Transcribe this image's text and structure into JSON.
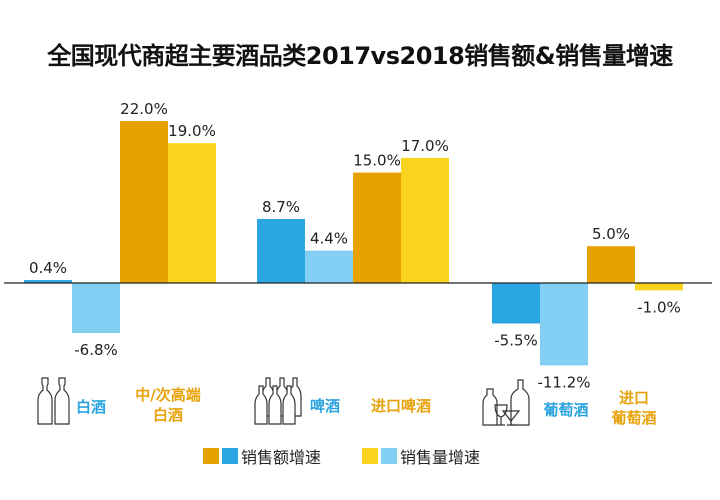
{
  "colors": {
    "sales_amount_main": "#2aa7e3",
    "sales_volume_main": "#84cff4",
    "sales_amount_premium": "#e8a200",
    "sales_volume_premium": "#fad31e",
    "axis": "#222222"
  },
  "chart_data": {
    "type": "bar",
    "title": "全国现代商超主要酒品类2017vs2018销售额&销售量增速",
    "xlabel": "",
    "ylabel": "",
    "ylim": [
      -12,
      24
    ],
    "grid": false,
    "legend_position": "bottom",
    "legend": [
      {
        "label": "销售额增速",
        "colors": [
          "#e8a200",
          "#2aa7e3"
        ]
      },
      {
        "label": "销售量增速",
        "colors": [
          "#fad31e",
          "#84cff4"
        ]
      }
    ],
    "groups": [
      {
        "category": "白酒",
        "label_color": "blue",
        "icon": "two-bottles-icon",
        "series": [
          {
            "name": "销售额增速",
            "value": 0.4,
            "label": "0.4%"
          },
          {
            "name": "销售量增速",
            "value": -6.8,
            "label": "-6.8%"
          }
        ]
      },
      {
        "category": "中/次高端\n白酒",
        "label_lines": [
          "中/次高端",
          "白酒"
        ],
        "label_color": "orange",
        "series": [
          {
            "name": "销售额增速",
            "value": 22.0,
            "label": "22.0%"
          },
          {
            "name": "销售量增速",
            "value": 19.0,
            "label": "19.0%"
          }
        ]
      },
      {
        "category": "啤酒",
        "label_color": "blue",
        "icon": "beer-bottles-icon",
        "series": [
          {
            "name": "销售额增速",
            "value": 8.7,
            "label": "8.7%"
          },
          {
            "name": "销售量增速",
            "value": 4.4,
            "label": "4.4%"
          }
        ]
      },
      {
        "category": "进口啤酒",
        "label_color": "orange",
        "series": [
          {
            "name": "销售额增速",
            "value": 15.0,
            "label": "15.0%"
          },
          {
            "name": "销售量增速",
            "value": 17.0,
            "label": "17.0%"
          }
        ]
      },
      {
        "category": "葡萄酒",
        "label_color": "blue",
        "icon": "wine-glass-bottles-icon",
        "series": [
          {
            "name": "销售额增速",
            "value": -5.5,
            "label": "-5.5%"
          },
          {
            "name": "销售量增速",
            "value": -11.2,
            "label": "-11.2%"
          }
        ]
      },
      {
        "category": "进口\n葡萄酒",
        "label_lines": [
          "进口",
          "葡萄酒"
        ],
        "label_color": "orange",
        "series": [
          {
            "name": "销售额增速",
            "value": 5.0,
            "label": "5.0%"
          },
          {
            "name": "销售量增速",
            "value": -1.0,
            "label": "-1.0%"
          }
        ]
      }
    ]
  }
}
